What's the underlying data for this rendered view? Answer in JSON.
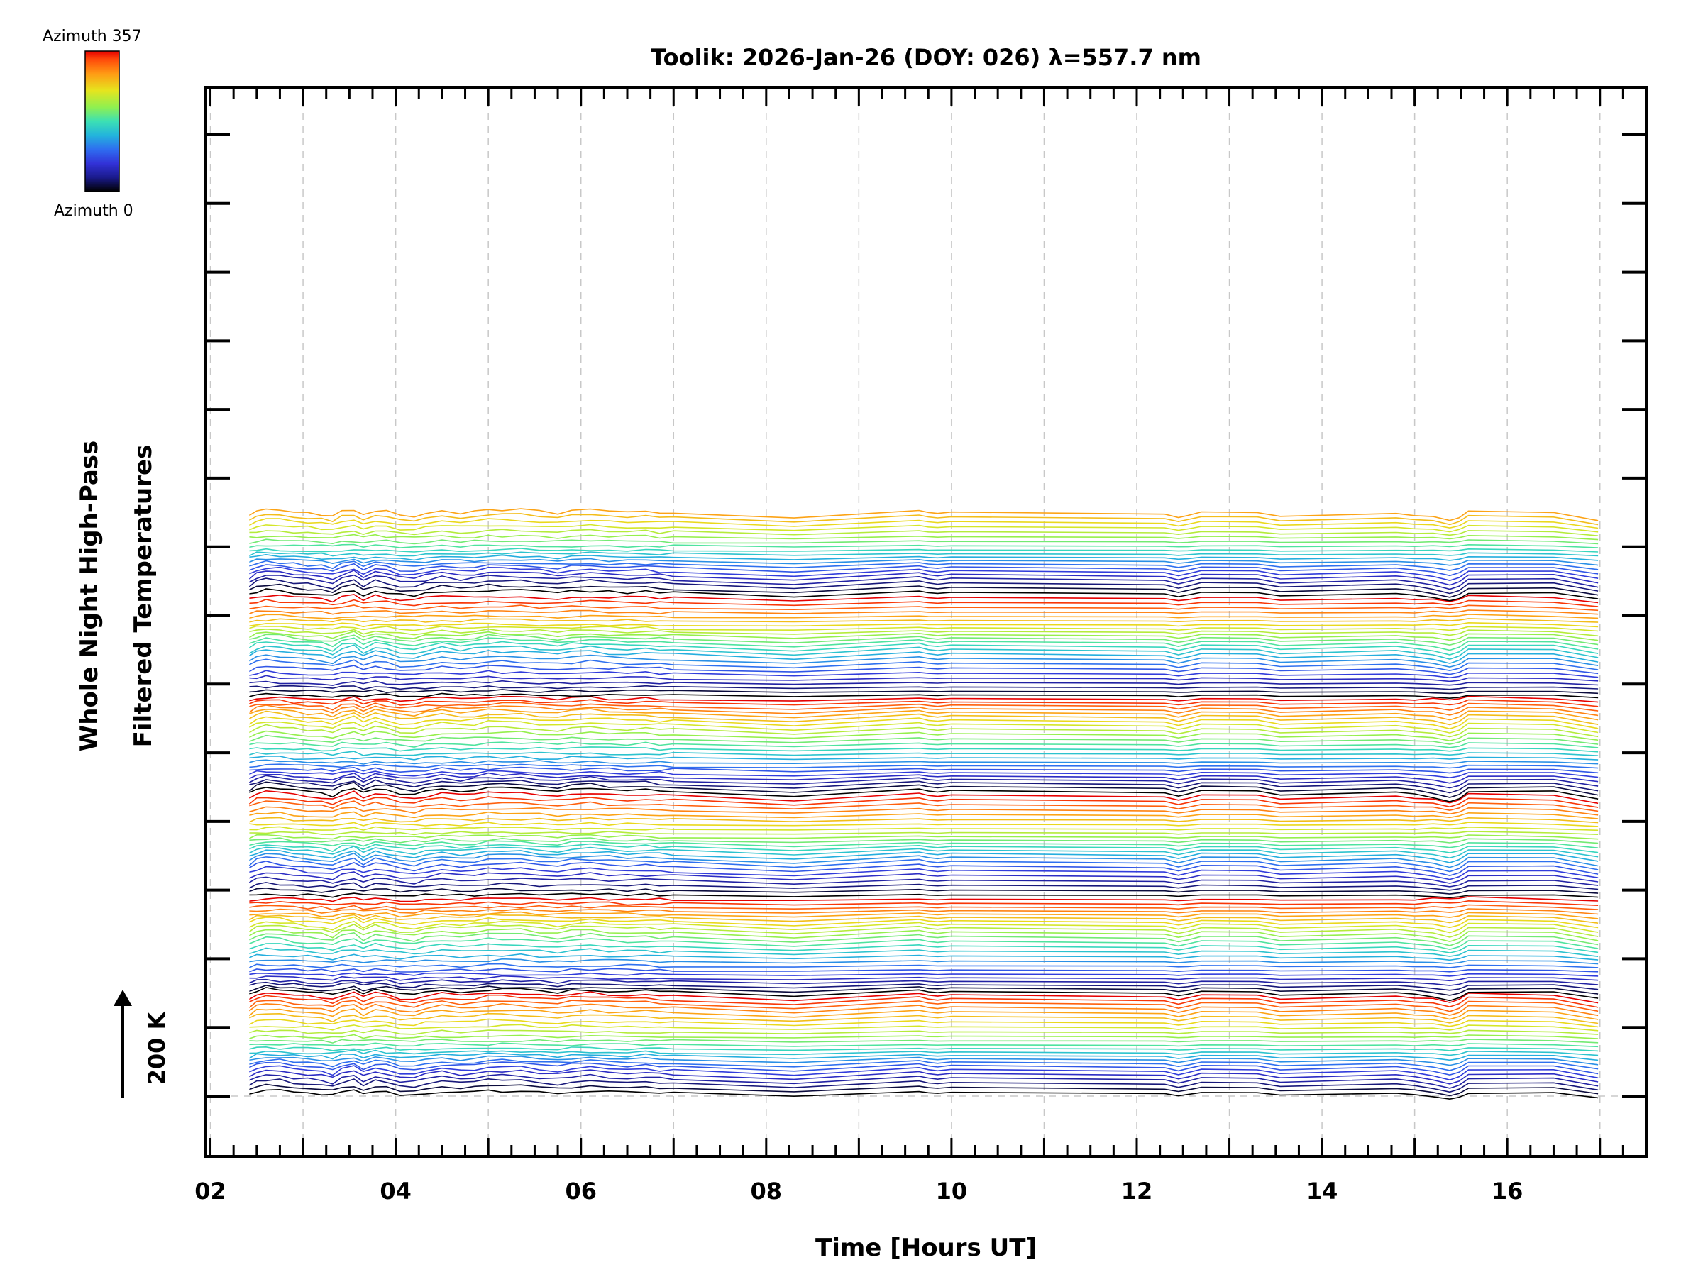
{
  "chart_data": {
    "type": "line",
    "title": "Toolik: 2026-Jan-26 (DOY: 026) λ=557.7 nm",
    "xlabel": "Time [Hours UT]",
    "ylabel_line1": "Whole Night High-Pass",
    "ylabel_line2": "Filtered Temperatures",
    "xlim": [
      1.95,
      17.5
    ],
    "x_ticks": [
      2,
      4,
      6,
      8,
      10,
      12,
      14,
      16
    ],
    "x_tick_labels": [
      "02",
      "04",
      "06",
      "08",
      "10",
      "12",
      "14",
      "16"
    ],
    "x_minor_step": 0.25,
    "y_major_tick_count": 15,
    "grid": "dashed",
    "scale_bar_label": "200 K",
    "colorbar": {
      "top_label": "Azimuth 357",
      "bottom_label": "Azimuth 0",
      "colormap": [
        "#000000",
        "#1a1a8c",
        "#3232d8",
        "#2e6df0",
        "#23b4dc",
        "#3ce0b4",
        "#8ff050",
        "#e6e41e",
        "#ff9a14",
        "#ff4a0a",
        "#e60000"
      ]
    },
    "series_count": 140,
    "azimuth_range": [
      0,
      357
    ],
    "traces_per_group": 24,
    "time_samples": [
      2.42,
      2.5,
      2.6,
      2.75,
      2.9,
      3.05,
      3.2,
      3.32,
      3.42,
      3.55,
      3.65,
      3.78,
      3.9,
      4.05,
      4.2,
      4.32,
      4.5,
      4.7,
      4.85,
      5.0,
      5.15,
      5.35,
      5.55,
      5.75,
      5.9,
      6.1,
      6.3,
      6.5,
      6.7,
      6.85,
      7.0,
      8.3,
      9.65,
      9.75,
      9.85,
      10.0,
      12.3,
      12.45,
      12.55,
      12.7,
      13.3,
      13.55,
      14.8,
      15.0,
      15.2,
      15.38,
      15.48,
      15.58,
      16.5,
      16.98
    ],
    "base_profile_k": [
      25,
      70,
      90,
      82,
      58,
      45,
      35,
      10,
      60,
      85,
      30,
      78,
      62,
      25,
      20,
      45,
      70,
      52,
      60,
      82,
      80,
      78,
      62,
      45,
      68,
      78,
      62,
      55,
      62,
      50,
      48,
      0,
      75,
      55,
      45,
      60,
      38,
      5,
      25,
      60,
      55,
      15,
      45,
      25,
      -10,
      -50,
      -20,
      45,
      55,
      -25
    ],
    "trace_offset_k": 40
  }
}
